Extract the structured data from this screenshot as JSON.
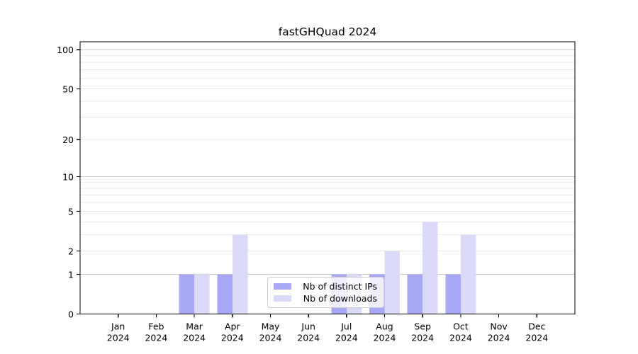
{
  "chart_data": {
    "type": "bar",
    "title": "fastGHQuad 2024",
    "categories": [
      "Jan",
      "Feb",
      "Mar",
      "Apr",
      "May",
      "Jun",
      "Jul",
      "Aug",
      "Sep",
      "Oct",
      "Nov",
      "Dec"
    ],
    "year_label": "2024",
    "series": [
      {
        "name": "Nb of distinct IPs",
        "color": "#a8a8f6",
        "values": [
          0,
          0,
          1,
          1,
          0,
          0,
          1,
          1,
          1,
          1,
          0,
          0
        ]
      },
      {
        "name": "Nb of downloads",
        "color": "#dadaf8",
        "values": [
          0,
          0,
          1,
          3,
          0,
          0,
          1,
          2,
          4,
          3,
          0,
          0
        ]
      }
    ],
    "xlabel": "",
    "ylabel": "",
    "yscale": "log1p",
    "ylim": [
      0,
      115
    ],
    "y_ticks": [
      0,
      1,
      2,
      5,
      10,
      20,
      50,
      100
    ],
    "grid": "on",
    "legend_position": "lower center",
    "colors": {
      "major_grid": "#c8c8c8",
      "minor_grid": "#eaeaea",
      "spine": "#000000",
      "text": "#000000",
      "background": "#ffffff"
    }
  }
}
